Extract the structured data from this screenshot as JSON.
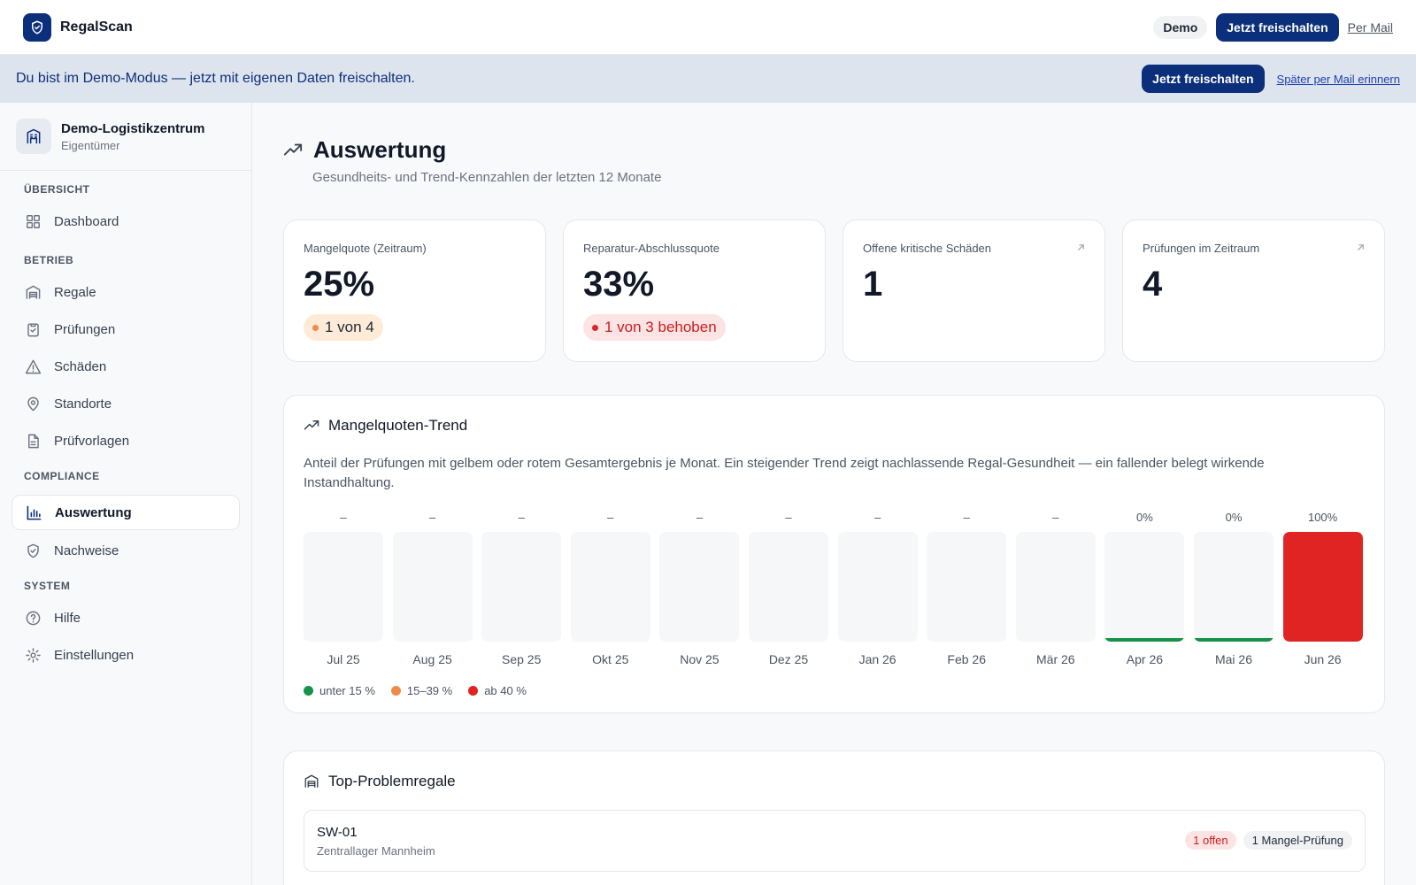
{
  "app": {
    "brand": "RegalScan",
    "demo_badge": "Demo",
    "unlock_label": "Jetzt freischalten",
    "mail_link": "Per Mail"
  },
  "banner": {
    "text": "Du bist im Demo-Modus — jetzt mit eigenen Daten freischalten.",
    "unlock_label": "Jetzt freischalten",
    "remind_link": "Später per Mail erinnern"
  },
  "org": {
    "name": "Demo-Logistikzentrum",
    "role": "Eigentümer"
  },
  "nav": {
    "sections": [
      "ÜBERSICHT",
      "BETRIEB",
      "COMPLIANCE",
      "SYSTEM"
    ],
    "items": [
      {
        "label": "Dashboard",
        "icon": "grid-icon"
      },
      {
        "label": "Regale",
        "icon": "warehouse-icon"
      },
      {
        "label": "Prüfungen",
        "icon": "clipboard-check-icon"
      },
      {
        "label": "Schäden",
        "icon": "warning-triangle-icon"
      },
      {
        "label": "Standorte",
        "icon": "map-pin-icon"
      },
      {
        "label": "Prüfvorlagen",
        "icon": "file-text-icon"
      },
      {
        "label": "Auswertung",
        "icon": "bar-chart-icon",
        "active": true
      },
      {
        "label": "Nachweise",
        "icon": "shield-check-icon"
      },
      {
        "label": "Hilfe",
        "icon": "help-circle-icon"
      },
      {
        "label": "Einstellungen",
        "icon": "gear-icon"
      }
    ]
  },
  "page": {
    "title": "Auswertung",
    "subtitle": "Gesundheits- und Trend-Kennzahlen der letzten 12 Monate"
  },
  "kpis": [
    {
      "label": "Mangelquote (Zeitraum)",
      "value": "25%",
      "badge": "1 von 4"
    },
    {
      "label": "Reparatur-Abschlussquote",
      "value": "33%",
      "badge": "1 von 3 behoben"
    },
    {
      "label": "Offene kritische Schäden",
      "value": "1"
    },
    {
      "label": "Prüfungen im Zeitraum",
      "value": "4"
    }
  ],
  "trend": {
    "title": "Mangelquoten-Trend",
    "description": "Anteil der Prüfungen mit gelbem oder rotem Gesamtergebnis je Monat. Ein steigender Trend zeigt nachlassende Regal-Gesundheit — ein fallender belegt wirkende Instandhaltung.",
    "legend": [
      "unter 15 %",
      "15–39 %",
      "ab 40 %"
    ],
    "colors": {
      "low": "#16924a",
      "mid": "#ef8b4a",
      "high": "#e02424"
    }
  },
  "chart_data": {
    "type": "bar",
    "categories": [
      "Jul 25",
      "Aug 25",
      "Sep 25",
      "Okt 25",
      "Nov 25",
      "Dez 25",
      "Jan 26",
      "Feb 26",
      "Mär 26",
      "Apr 26",
      "Mai 26",
      "Jun 26"
    ],
    "values": [
      null,
      null,
      null,
      null,
      null,
      null,
      null,
      null,
      null,
      0,
      0,
      100
    ],
    "value_labels": [
      "–",
      "–",
      "–",
      "–",
      "–",
      "–",
      "–",
      "–",
      "–",
      "0%",
      "0%",
      "100%"
    ],
    "ylim": [
      0,
      100
    ],
    "grid": false,
    "legend_position": "bottom-left"
  },
  "top_racks": {
    "title": "Top-Problemregale",
    "items": [
      {
        "name": "SW-01",
        "location": "Zentrallager Mannheim",
        "open_badge": "1 offen",
        "defect_badge": "1 Mangel-Prüfung"
      }
    ]
  }
}
